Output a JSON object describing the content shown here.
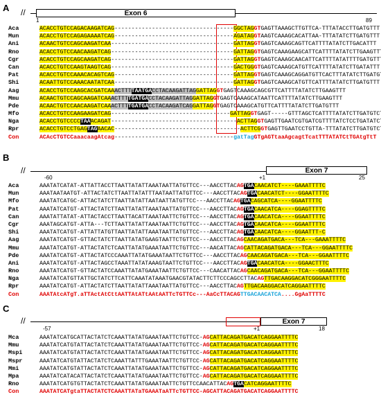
{
  "panels": {
    "A": {
      "label": "A",
      "exon_label": "Exon 6",
      "coord_left": "1",
      "coord_right": "89",
      "species": [
        "Aca",
        "Mun",
        "Ani",
        "Rno",
        "Cgr",
        "Can",
        "Pat",
        "Shi",
        "Aag",
        "Mmu",
        "Pde",
        "Mfo",
        "Nga",
        "Rpr",
        "Con"
      ],
      "rows": [
        [
          [
            "y",
            "ACACCTGTCCAGACAAGATCAG"
          ],
          [
            "n",
            "-----------------------------------"
          ],
          [
            "y",
            "GGCTAG"
          ],
          [
            "r",
            "GT"
          ],
          [
            "n",
            "GAGTTAAAGCTTGTTCA-TTTATACCTTGATGTTT"
          ]
        ],
        [
          [
            "y",
            "ACACCTGTCCAGAGAAAATCAG"
          ],
          [
            "n",
            "-----------------------------------"
          ],
          [
            "y",
            "AGATAG"
          ],
          [
            "r",
            "GT"
          ],
          [
            "n",
            "AAGTCAAAGCACATTAA-TTTATATCTTGATGTTT"
          ]
        ],
        [
          [
            "y",
            "ACAACTGTCCAGCAAGATCAA"
          ],
          [
            "n",
            "------------------------------------"
          ],
          [
            "y",
            "GATTAG"
          ],
          [
            "r",
            "GT"
          ],
          [
            "n",
            "GAGTCAAAGCAGTTCATTTTATATCTTGACATTT"
          ]
        ],
        [
          [
            "y",
            "ACACCTGTCCAACAAGATCAG"
          ],
          [
            "n",
            "------------------------------------"
          ],
          [
            "y",
            "GATTAG"
          ],
          [
            "r",
            "GT"
          ],
          [
            "n",
            "GAGTCAAAGAAGCATTCATTTTATATCTTGAAGTTT"
          ]
        ],
        [
          [
            "y",
            "ACACCTGTCCAGCAAGATCAG"
          ],
          [
            "n",
            "------------------------------------"
          ],
          [
            "y",
            "GATTAG"
          ],
          [
            "r",
            "GT"
          ],
          [
            "n",
            "GAGTCAAAGCAACATTCATTTTATATTTTGATGTTT"
          ]
        ],
        [
          [
            "y",
            "ACACCTGTCCAAGTAAGTCAG"
          ],
          [
            "n",
            "------------------------------------"
          ],
          [
            "y",
            "GACTGG"
          ],
          [
            "r",
            "GT"
          ],
          [
            "n",
            "GAGTCAAAGCATGTTCATTTTATATCTTGATATTT"
          ]
        ],
        [
          [
            "y",
            "ACACCTGTCCAAACACAGTCAG"
          ],
          [
            "n",
            "-----------------------------------"
          ],
          [
            "y",
            "GATTAG"
          ],
          [
            "r",
            "GT"
          ],
          [
            "n",
            "GAGTCAAAGCAGGATGTTCACTTTATATCTTGATGTTT"
          ]
        ],
        [
          [
            "y",
            "ACAATTGTCCAAACAATATCAA"
          ],
          [
            "n",
            "-----------------------------------"
          ],
          [
            "y",
            "GATTAG"
          ],
          [
            "r",
            "GT"
          ],
          [
            "n",
            "GAGTCAAAGCATGTTCATTTTATATCTTGATGTTT"
          ]
        ],
        [
          [
            "y",
            "ACACCTGTCCAAGCACGATCAA"
          ],
          [
            "g",
            "ACTTT"
          ],
          [
            "k",
            "TAATGA"
          ],
          [
            "g",
            "CCTACAAGATTAG"
          ],
          [
            "y",
            "GATTAG"
          ],
          [
            "r",
            "GT"
          ],
          [
            "n",
            "GAGTCAAAGCAGCGTTCATTTTATATCTTGAAGTTT"
          ]
        ],
        [
          [
            "y",
            "ACAACTGTCCAGCAAGATCAA"
          ],
          [
            "g",
            "ACTTT"
          ],
          [
            "k",
            "TGATGA"
          ],
          [
            "g",
            "CCTACAAGATTAG"
          ],
          [
            "y",
            "GATTAG"
          ],
          [
            "r",
            "GT"
          ],
          [
            "n",
            "GAGTCAAAGCATAATTCATTTTATATCTTGAAGTTT"
          ]
        ],
        [
          [
            "y",
            "ACAACTGTCCAACAAGATCAA"
          ],
          [
            "g",
            "ACTTT"
          ],
          [
            "k",
            "TGATGA"
          ],
          [
            "g",
            "CCTACAAGATCAG"
          ],
          [
            "y",
            "GATTAG"
          ],
          [
            "r",
            "GT"
          ],
          [
            "n",
            "GAGTCAAAGCATGTTCATTTTATATCTTGATGTTT"
          ]
        ],
        [
          [
            "y",
            "ACACCTGTCCAAGAAGATCAG"
          ],
          [
            "n",
            "-----------------------------------"
          ],
          [
            "y",
            "GATTAG"
          ],
          [
            "r",
            "GT"
          ],
          [
            "n",
            "GAGT-----GTTTAGCTCATTTTATATCTTGATGTCT"
          ]
        ],
        [
          [
            "y",
            "ACACCTGTCCCC"
          ],
          [
            "k",
            "TAA"
          ],
          [
            "y",
            "ACAGAT"
          ],
          [
            "n",
            "-------------------------------------"
          ],
          [
            "y",
            "ACTTAG"
          ],
          [
            "r",
            "GT"
          ],
          [
            "n",
            "GAGTTGAATCGTGATCGTTTTATCTCCTGATATCT"
          ]
        ],
        [
          [
            "y",
            "ACACCTGTCCTGAG"
          ],
          [
            "k",
            "TAG"
          ],
          [
            "y",
            "AACAC"
          ],
          [
            "n",
            "-------------------------------------"
          ],
          [
            "y",
            "ACTTCG"
          ],
          [
            "r",
            "GT"
          ],
          [
            "n",
            "GAGTTGAATCCTGTTA-TTTATATCTTGATGTCT"
          ]
        ],
        [
          [
            "cr",
            "ACAcCTGTCCaaacaagAtcag"
          ],
          [
            "n",
            "-----------------------------------"
          ],
          [
            "b",
            "gatTag"
          ],
          [
            "cr",
            "GTgAGTtaaAgcagtTcatTTTATATCtTGAtgTtT"
          ]
        ]
      ]
    },
    "B": {
      "label": "B",
      "exon_label": "Exon 7",
      "coord_left": "-60",
      "coord_mid": "+1",
      "coord_right": "25",
      "species": [
        "Aca",
        "Mun",
        "Mfo",
        "Pat",
        "Can",
        "Cgr",
        "Shi",
        "Aag",
        "Mmu",
        "Pde",
        "Ani",
        "Rno",
        "Nga",
        "Rpr",
        "Con"
      ],
      "rows": [
        [
          [
            "n",
            "AAATATCATAT-ATTATTACCTTAATTATATTAAATAATTATGTTCC---AACCTTAC"
          ],
          [
            "r",
            "AG"
          ],
          [
            "k",
            "TGA"
          ],
          [
            "y",
            "CAACATCT----GAAATTTTC"
          ]
        ],
        [
          [
            "n",
            "AAATAATAATGT-ATTACTATCTTAATTATATTTAATAATTATGTTCC---AACCTTAC"
          ],
          [
            "r",
            "AG"
          ],
          [
            "k",
            "TGA"
          ],
          [
            "y",
            "CAACATCT----GGAATTTTC"
          ]
        ],
        [
          [
            "n",
            "AAATATCATGC-ATTACTATCTTAATTATATTAATAATTATGTTCC---AACCTTAC"
          ],
          [
            "r",
            "AG"
          ],
          [
            "k",
            "TGA"
          ],
          [
            "y",
            "CAGCATCA----GGAATTTTC"
          ]
        ],
        [
          [
            "n",
            "AAATATCATGT-ATTACTATCTTAATTATATTAAATAATTATGTTCC---AACCTTAC"
          ],
          [
            "r",
            "AG"
          ],
          [
            "k",
            "TGA"
          ],
          [
            "y",
            "CAACATCA----GGAGTTTTC"
          ]
        ],
        [
          [
            "n",
            "AAATATTATAT-ATTACTACCTTAATTACATTAAATAATTCTGTTCC---AACCTTAC"
          ],
          [
            "r",
            "AG"
          ],
          [
            "k",
            "TGA"
          ],
          [
            "y",
            "CAACATCA----GGAATTTTC"
          ]
        ],
        [
          [
            "n",
            "AAATAGCATGT-ATTA---TCTTAATTATATTAAATAATTCTGTTCC---AACCTTAC"
          ],
          [
            "r",
            "AG"
          ],
          [
            "k",
            "TGA"
          ],
          [
            "y",
            "CAACATCA----GGAATTTTC"
          ]
        ],
        [
          [
            "n",
            "AAATATCATGT-ATTATTATGTTAATTATATTAAATAATTATGTTCC---AACCTTAC"
          ],
          [
            "r",
            "AG"
          ],
          [
            "k",
            "TGA"
          ],
          [
            "y",
            "CAACATCA----GGAATTT-C"
          ]
        ],
        [
          [
            "n",
            "AAATATCATGT-GTTACTATCTTAATTATATGAAGTAATTCTGTTCC---AACCTTAC"
          ],
          [
            "r",
            "AG"
          ],
          [
            "y",
            "CAACAGATGACA---TCA---GAAATTTTC"
          ]
        ],
        [
          [
            "n",
            "AAATATCATGT-ATTACTATCTCAATTATATGAAATAATTCTGTTCC---AACATTAC"
          ],
          [
            "r",
            "AG"
          ],
          [
            "y",
            "CATTACAGATGACA---TCA---GGAATTTTC"
          ]
        ],
        [
          [
            "n",
            "AAATATCATGT-ATTACTATCCCAAATTATATGAAATAATTCTGTTCC---AACCTTAC"
          ],
          [
            "r",
            "AG"
          ],
          [
            "y",
            "CAACAGATGACA---TCA---GGAATTTTC"
          ]
        ],
        [
          [
            "n",
            "AAATATCATGT-ATTACTAGCCTAAATTATATAAAGTAATTCTGTTCC---AACCTTAC"
          ],
          [
            "r",
            "AG"
          ],
          [
            "k",
            "TGA"
          ],
          [
            "y",
            "CAACATCA----GGAACTTTC"
          ]
        ],
        [
          [
            "n",
            "AAATATCATGT-GTTACTATCCAAATTATATGAAATAATTCTGTTCC---CAACATTAC"
          ],
          [
            "r",
            "AG"
          ],
          [
            "y",
            "CAACAGATGACA---TCA---GGAATTTTC"
          ]
        ],
        [
          [
            "n",
            "AAATATCATGTTATTGCTATCTTCATTCAAATATAAATGAACGTATACTTCTTCCCAGCCTTAC"
          ],
          [
            "r",
            "AG"
          ],
          [
            "y",
            "TTGACAAGGACATCGGGAATTTTC"
          ]
        ],
        [
          [
            "n",
            "AAATATCATGT-ATTACTATCTTAATTATATTAAATAATTATGTTCC---AACCTTAC"
          ],
          [
            "r",
            "AG"
          ],
          [
            "y",
            "TTGACAAGGACATCAGGAATTTTC"
          ]
        ],
        [
          [
            "cr",
            "AAATAtcATgT.aTTActAtCttAATTAtATtAAtAATTcTGTTCc---AaCcTTACAG"
          ],
          [
            "b",
            "TTGACAACATCA"
          ],
          [
            "cr",
            "....GgAaTTTTC"
          ]
        ]
      ]
    },
    "C": {
      "label": "C",
      "exon_label": "Exon 7",
      "coord_left": "-57",
      "coord_mid": "+1",
      "coord_right": "18",
      "species": [
        "Mca",
        "Mmu",
        "Mspi",
        "Mspr",
        "Mmi",
        "Mpa",
        "Rno",
        "Con"
      ],
      "rows": [
        [
          [
            "n",
            "AAATATCATGCATTACTATCTCAAATTATATGAAATAATTCTGTTCC-"
          ],
          [
            "r",
            "AG"
          ],
          [
            "y",
            "CATTACAGATGACATCAGGAATTTTC"
          ]
        ],
        [
          [
            "n",
            "AAATATCATGTATTACTATCTCAAATTATATGAAATAATTCTGTTCC-"
          ],
          [
            "r",
            "AG"
          ],
          [
            "y",
            "CATTACAGATGACATCAGGAATTTTC"
          ]
        ],
        [
          [
            "n",
            "AAATATCATGTATTACTATCTCAAATTATATGAAATAATTCTGTTCC-"
          ],
          [
            "r",
            "AG"
          ],
          [
            "y",
            "CATTACAGATGACATCAGGAATTTTC"
          ]
        ],
        [
          [
            "n",
            "AAATATCATGTATTACTATCTCAAATTATTTGAAATAATTCTGTTCC-"
          ],
          [
            "r",
            "AG"
          ],
          [
            "y",
            "CATTACAGATGACATCAGGAATTTTC"
          ]
        ],
        [
          [
            "n",
            "AAATATCATGTATTACTATCTCAAATTATATGAAATAATTCTGTTCC-"
          ],
          [
            "r",
            "AG"
          ],
          [
            "y",
            "CATTACAGATGACATCAGGAATTTTC"
          ]
        ],
        [
          [
            "n",
            "AAATATCATACATTACTATCTCAAATTATATGAAATAATTCTGTTCC-"
          ],
          [
            "r",
            "AG"
          ],
          [
            "y",
            "CATTACAGATGACATCAGGAATTTTC"
          ]
        ],
        [
          [
            "n",
            "AAATATCATGTGTTACTATCTCAAATTATATGAAATAATTCTGTTCCAACATTAC"
          ],
          [
            "r",
            "AG"
          ],
          [
            "k",
            "TGA"
          ],
          [
            "y",
            "CATCAGGAATTTTC"
          ]
        ],
        [
          [
            "cr",
            "AAATATCATgtaTTACTATCTCAAATTATaTGAAATaATTcTGTTCC-AG"
          ],
          [
            "cr",
            "CATTACAGATGACATCAGGAATTTTC"
          ]
        ]
      ]
    }
  }
}
